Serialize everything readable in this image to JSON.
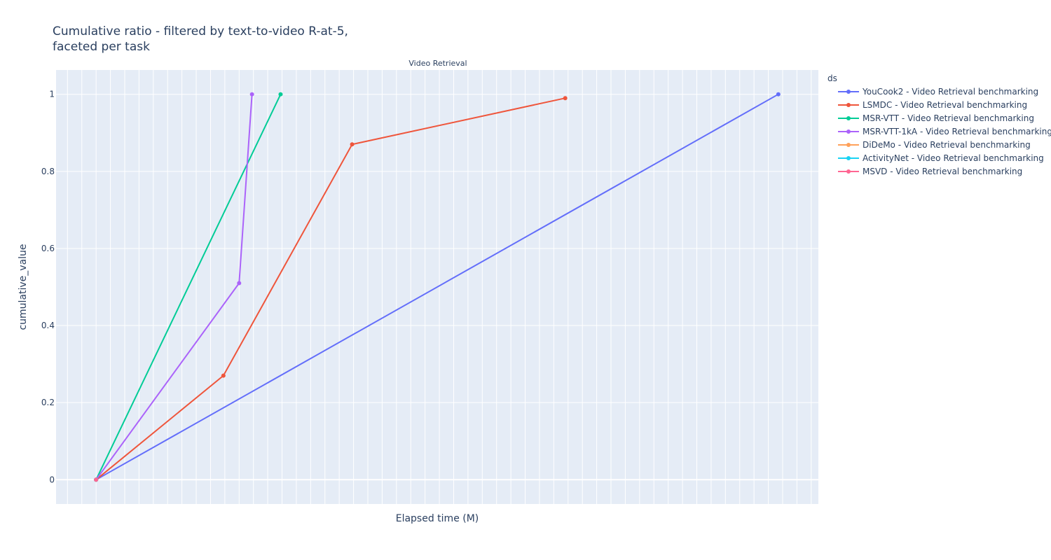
{
  "chart_data": {
    "type": "line",
    "title": [
      "Cumulative ratio - filtered by text-to-video R-at-5,",
      "faceted per task"
    ],
    "subplot_title": "Video Retrieval",
    "xlabel": "Elapsed time (M)",
    "ylabel": "cumulative_value",
    "xlim": [
      -2.8,
      50.5
    ],
    "ylim": [
      -0.063,
      1.063
    ],
    "yticks": [
      0,
      0.2,
      0.4,
      0.6,
      0.8,
      1
    ],
    "ytick_labels": [
      "0",
      "0.2",
      "0.4",
      "0.6",
      "0.8",
      "1"
    ],
    "x_grid_step": 1,
    "grid": true,
    "legend": {
      "title": "ds",
      "position": "right"
    },
    "series": [
      {
        "name": "YouCook2 - Video Retrieval benchmarking",
        "color": "#636efa",
        "x": [
          0,
          47.7
        ],
        "y": [
          0,
          1
        ]
      },
      {
        "name": "LSMDC - Video Retrieval benchmarking",
        "color": "#EF553B",
        "x": [
          0,
          8.9,
          17.9,
          32.8
        ],
        "y": [
          0,
          0.27,
          0.87,
          0.99
        ]
      },
      {
        "name": "MSR-VTT - Video Retrieval benchmarking",
        "color": "#00cc96",
        "x": [
          0,
          12.9
        ],
        "y": [
          0,
          1
        ]
      },
      {
        "name": "MSR-VTT-1kA - Video Retrieval benchmarking",
        "color": "#ab63fa",
        "x": [
          0,
          10.0,
          10.9
        ],
        "y": [
          0,
          0.51,
          1
        ]
      },
      {
        "name": "DiDeMo - Video Retrieval benchmarking",
        "color": "#FFA15A",
        "x": [
          0
        ],
        "y": [
          0
        ]
      },
      {
        "name": "ActivityNet - Video Retrieval benchmarking",
        "color": "#19d3f3",
        "x": [
          0
        ],
        "y": [
          0
        ]
      },
      {
        "name": "MSVD - Video Retrieval benchmarking",
        "color": "#FF6692",
        "x": [
          0
        ],
        "y": [
          0
        ]
      }
    ]
  }
}
